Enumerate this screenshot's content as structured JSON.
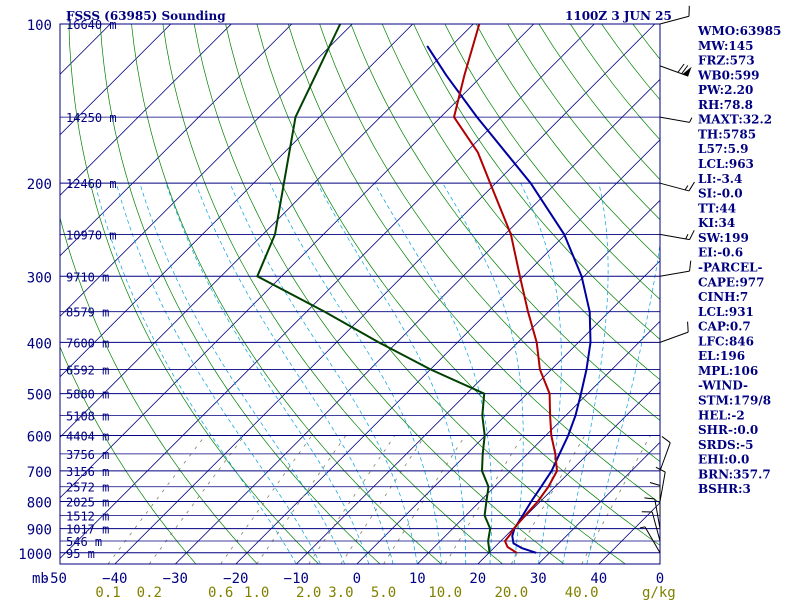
{
  "header": {
    "station": "FSSS (63985) Sounding",
    "time": "1100Z  3 JUN 25"
  },
  "chart_data": {
    "type": "skew-t",
    "pressure_levels": [
      100,
      200,
      300,
      400,
      500,
      600,
      700,
      800,
      900,
      1000
    ],
    "pressure_axis_label": "mb",
    "temperature_ticks": [
      -50,
      -40,
      -30,
      -20,
      -10,
      0,
      10,
      20,
      30,
      40
    ],
    "temperature_tick_labels": [
      "-50",
      "−40",
      "−30",
      "−20",
      "−10",
      "0",
      "10",
      "20",
      "30",
      "40"
    ],
    "mixing_ratio_labels": [
      "0.1",
      "0.2",
      "0.6",
      "1.0",
      "2.0",
      "3.0",
      "5.0",
      "10.0",
      "20.0",
      "40.0"
    ],
    "mixing_ratio_values": [
      0.1,
      0.2,
      0.6,
      1.0,
      2.0,
      3.0,
      5.0,
      10.0,
      20.0,
      40.0
    ],
    "mixing_ratio_unit": "g/kg",
    "corner_label": "0",
    "height_labels": [
      {
        "p": 100,
        "text": "16640 m"
      },
      {
        "p": 150,
        "text": "14250 m"
      },
      {
        "p": 200,
        "text": "12460 m"
      },
      {
        "p": 250,
        "text": "10970 m"
      },
      {
        "p": 300,
        "text": "9710 m"
      },
      {
        "p": 350,
        "text": "8579 m"
      },
      {
        "p": 400,
        "text": "7600 m"
      },
      {
        "p": 450,
        "text": "6592 m"
      },
      {
        "p": 500,
        "text": "5880 m"
      },
      {
        "p": 550,
        "text": "5108 m"
      },
      {
        "p": 600,
        "text": "4404 m"
      },
      {
        "p": 650,
        "text": "3756 m"
      },
      {
        "p": 700,
        "text": "3156 m"
      },
      {
        "p": 750,
        "text": "2572 m"
      },
      {
        "p": 800,
        "text": "2025 m"
      },
      {
        "p": 850,
        "text": "1512 m"
      },
      {
        "p": 900,
        "text": "1017 m"
      },
      {
        "p": 950,
        "text": "546 m"
      },
      {
        "p": 1000,
        "text": "95 m"
      }
    ],
    "temperature_profile": [
      {
        "p": 1000,
        "t": 24.6
      },
      {
        "p": 975,
        "t": 22.1
      },
      {
        "p": 950,
        "t": 20.7
      },
      {
        "p": 925,
        "t": 20.5
      },
      {
        "p": 900,
        "t": 20.1
      },
      {
        "p": 850,
        "t": 19.8
      },
      {
        "p": 800,
        "t": 19.6
      },
      {
        "p": 750,
        "t": 18.9
      },
      {
        "p": 700,
        "t": 17.7
      },
      {
        "p": 650,
        "t": 14.6
      },
      {
        "p": 600,
        "t": 10.9
      },
      {
        "p": 550,
        "t": 7.4
      },
      {
        "p": 500,
        "t": 3.7
      },
      {
        "p": 450,
        "t": -1.9
      },
      {
        "p": 400,
        "t": -6.9
      },
      {
        "p": 350,
        "t": -13.4
      },
      {
        "p": 300,
        "t": -20.6
      },
      {
        "p": 250,
        "t": -29.0
      },
      {
        "p": 200,
        "t": -40.9
      },
      {
        "p": 175,
        "t": -48.0
      },
      {
        "p": 150,
        "t": -57.8
      },
      {
        "p": 125,
        "t": -63.0
      },
      {
        "p": 100,
        "t": -69.0
      }
    ],
    "dewpoint_profile": [
      {
        "p": 1000,
        "t": 20.1
      },
      {
        "p": 950,
        "t": 17.9
      },
      {
        "p": 900,
        "t": 16.2
      },
      {
        "p": 850,
        "t": 13.1
      },
      {
        "p": 800,
        "t": 11.1
      },
      {
        "p": 750,
        "t": 9.0
      },
      {
        "p": 700,
        "t": 5.3
      },
      {
        "p": 650,
        "t": 2.6
      },
      {
        "p": 600,
        "t": -0.1
      },
      {
        "p": 550,
        "t": -3.8
      },
      {
        "p": 500,
        "t": -7.1
      },
      {
        "p": 450,
        "t": -20.0
      },
      {
        "p": 400,
        "t": -33.0
      },
      {
        "p": 350,
        "t": -47.0
      },
      {
        "p": 300,
        "t": -64.0
      },
      {
        "p": 250,
        "t": -68.0
      },
      {
        "p": 200,
        "t": -75.0
      },
      {
        "p": 150,
        "t": -84.0
      },
      {
        "p": 100,
        "t": -92.0
      }
    ],
    "parcel_profile": [
      {
        "p": 1000,
        "t": 27.8
      },
      {
        "p": 980,
        "t": 24.7
      },
      {
        "p": 960,
        "t": 22.5
      },
      {
        "p": 930,
        "t": 21.1
      },
      {
        "p": 900,
        "t": 20.2
      },
      {
        "p": 850,
        "t": 19.4
      },
      {
        "p": 800,
        "t": 18.5
      },
      {
        "p": 750,
        "t": 17.7
      },
      {
        "p": 700,
        "t": 16.8
      },
      {
        "p": 650,
        "t": 15.3
      },
      {
        "p": 600,
        "t": 13.7
      },
      {
        "p": 550,
        "t": 11.6
      },
      {
        "p": 500,
        "t": 8.9
      },
      {
        "p": 450,
        "t": 5.8
      },
      {
        "p": 400,
        "t": 2.0
      },
      {
        "p": 350,
        "t": -3.2
      },
      {
        "p": 300,
        "t": -10.4
      },
      {
        "p": 250,
        "t": -20.2
      },
      {
        "p": 200,
        "t": -34.2
      },
      {
        "p": 150,
        "t": -54.0
      },
      {
        "p": 125,
        "t": -66.0
      },
      {
        "p": 110,
        "t": -74.0
      }
    ],
    "wind_barbs": [
      {
        "p": 100,
        "dir": 255,
        "spd": 10
      },
      {
        "p": 120,
        "dir": 290,
        "spd": 70
      },
      {
        "p": 150,
        "dir": 280,
        "spd": 5
      },
      {
        "p": 200,
        "dir": 285,
        "spd": 15
      },
      {
        "p": 250,
        "dir": 280,
        "spd": 15
      },
      {
        "p": 300,
        "dir": 260,
        "spd": 10
      },
      {
        "p": 400,
        "dir": 250,
        "spd": 10
      },
      {
        "p": 700,
        "dir": 200,
        "spd": 10
      },
      {
        "p": 800,
        "dir": 190,
        "spd": 10
      },
      {
        "p": 850,
        "dir": 180,
        "spd": 10
      },
      {
        "p": 900,
        "dir": 170,
        "spd": 10
      },
      {
        "p": 950,
        "dir": 165,
        "spd": 10
      },
      {
        "p": 1000,
        "dir": 150,
        "spd": 5
      }
    ],
    "colors": {
      "isobar": "#000080",
      "isotherm": "#000080",
      "dry_adiabat": "#008000",
      "moist_adiabat": "#00a0e0",
      "mixing_ratio": "#808060",
      "temperature": "#b00000",
      "dewpoint": "#004000",
      "parcel": "#0000a0",
      "mixing_ratio_labels": "#808000"
    }
  },
  "indices": [
    "WMO:63985",
    "MW:145",
    "FRZ:573",
    "WB0:599",
    "PW:2.20",
    "RH:78.8",
    "MAXT:32.2",
    "TH:5785",
    "L57:5.9",
    "LCL:963",
    "LI:-3.4",
    "SI:-0.0",
    "TT:44",
    "KI:34",
    "SW:199",
    "EI:-0.6",
    "-PARCEL-",
    "CAPE:977",
    "CINH:7",
    "LCL:931",
    "CAP:0.7",
    "LFC:846",
    "EL:196",
    "MPL:106",
    "-WIND-",
    "STM:179/8",
    "HEL:-2",
    "SHR-:0.0",
    "SRDS:-5",
    "EHI:0.0",
    "BRN:357.7",
    "BSHR:3"
  ]
}
